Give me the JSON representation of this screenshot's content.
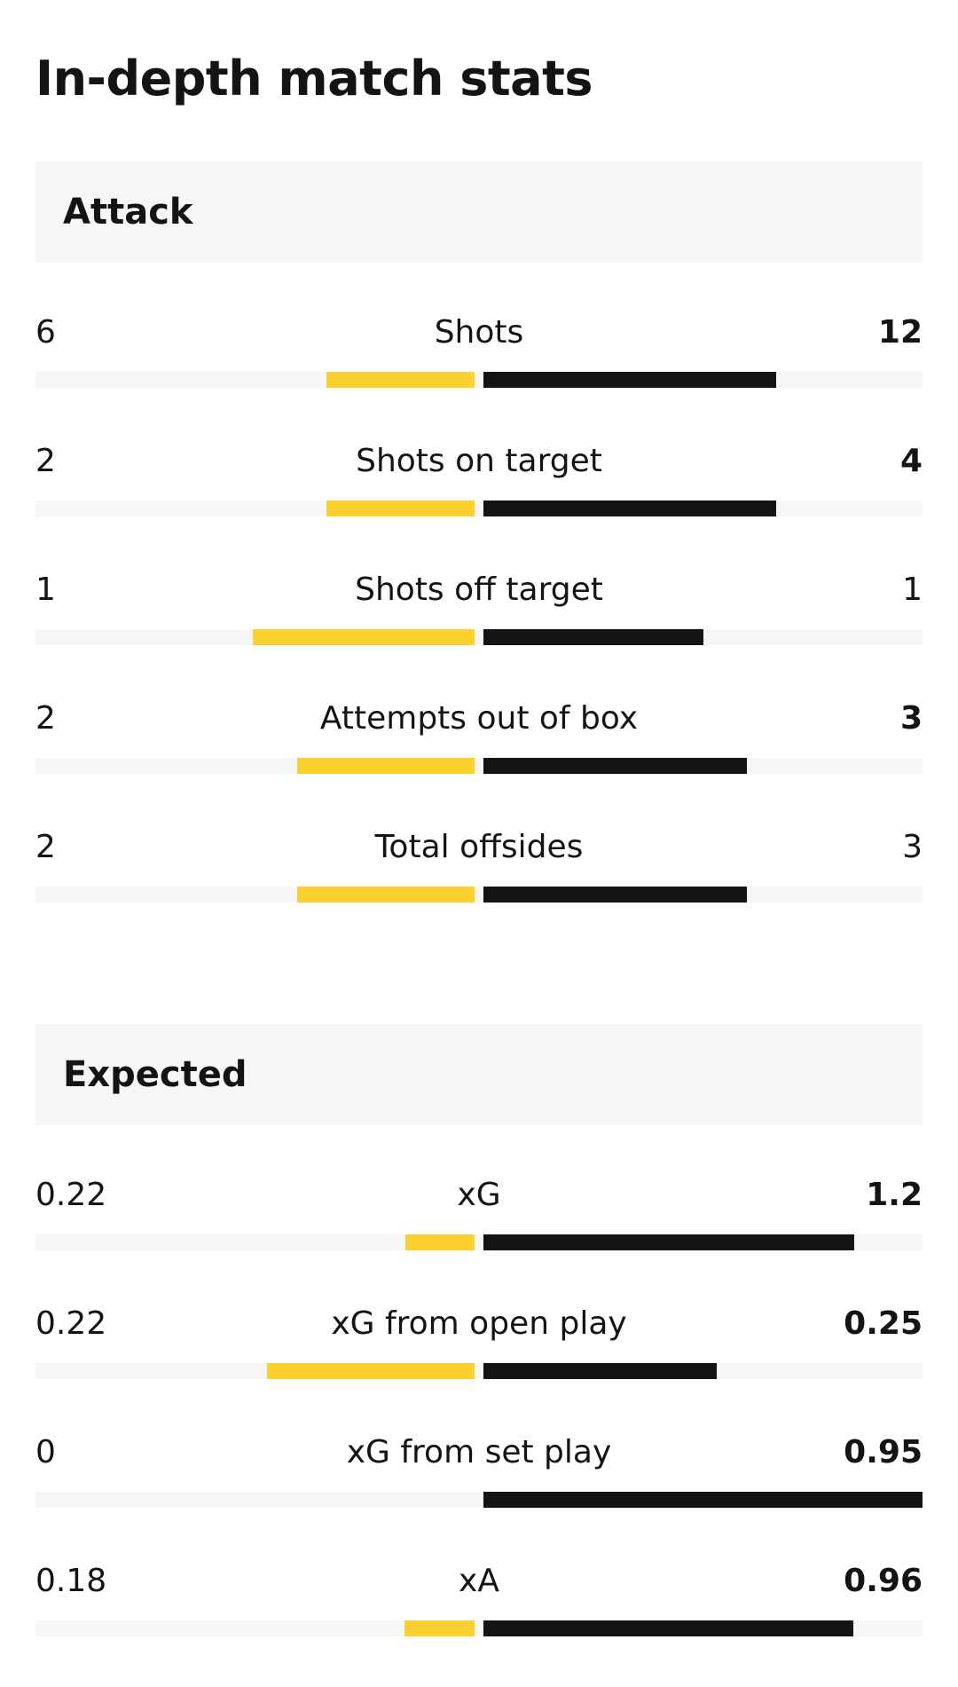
{
  "page": {
    "title": "In-depth match stats"
  },
  "colors": {
    "home_bar": "#fcd12f",
    "away_bar": "#141414",
    "track": "#f6f6f6"
  },
  "sections": [
    {
      "title": "Attack",
      "stats": [
        {
          "label": "Shots",
          "home": "6",
          "away": "12",
          "home_share": 0.333,
          "away_share": 0.667,
          "away_bold": true
        },
        {
          "label": "Shots on target",
          "home": "2",
          "away": "4",
          "home_share": 0.333,
          "away_share": 0.667,
          "away_bold": true
        },
        {
          "label": "Shots off target",
          "home": "1",
          "away": "1",
          "home_share": 0.5,
          "away_share": 0.5,
          "away_bold": false
        },
        {
          "label": "Attempts out of box",
          "home": "2",
          "away": "3",
          "home_share": 0.4,
          "away_share": 0.6,
          "away_bold": true
        },
        {
          "label": "Total offsides",
          "home": "2",
          "away": "3",
          "home_share": 0.4,
          "away_share": 0.6,
          "away_bold": false
        }
      ]
    },
    {
      "title": "Expected",
      "stats": [
        {
          "label": "xG",
          "home": "0.22",
          "away": "1.2",
          "home_share": 0.155,
          "away_share": 0.845,
          "away_bold": true
        },
        {
          "label": "xG from open play",
          "home": "0.22",
          "away": "0.25",
          "home_share": 0.468,
          "away_share": 0.532,
          "away_bold": true
        },
        {
          "label": "xG from set play",
          "home": "0",
          "away": "0.95",
          "home_share": 0.0,
          "away_share": 1.0,
          "away_bold": true
        },
        {
          "label": "xA",
          "home": "0.18",
          "away": "0.96",
          "home_share": 0.158,
          "away_share": 0.842,
          "away_bold": true
        }
      ]
    }
  ]
}
